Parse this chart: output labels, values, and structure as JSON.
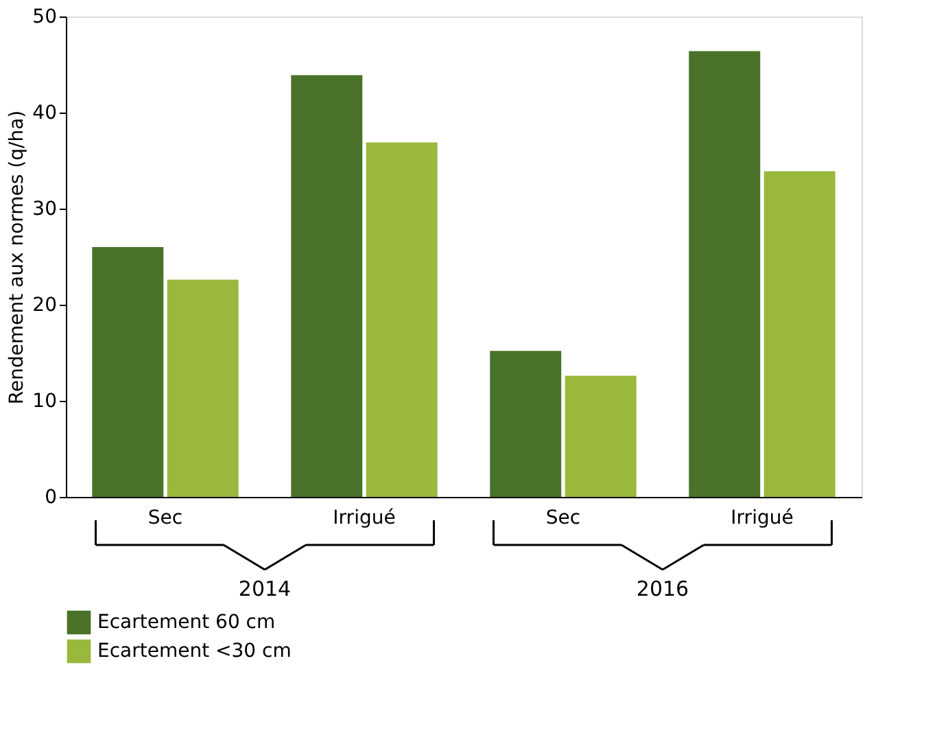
{
  "chart_data": {
    "type": "bar",
    "categories": [
      "Sec",
      "Irrigué",
      "Sec",
      "Irrigué"
    ],
    "series": [
      {
        "name": "Ecartement 60 cm",
        "color": "#4a7229",
        "values": [
          26.0,
          43.9,
          15.2,
          46.4
        ]
      },
      {
        "name": "Ecartement <30 cm",
        "color": "#9ab83c",
        "values": [
          22.6,
          36.9,
          12.6,
          33.9
        ]
      }
    ],
    "ylabel": "Rendement aux normes (q/ha)",
    "ylim": [
      0,
      50
    ],
    "yticks": [
      0,
      10,
      20,
      30,
      40,
      50
    ],
    "annotations": [
      "2014",
      "2016"
    ],
    "grid": false,
    "legend": "bottom"
  }
}
